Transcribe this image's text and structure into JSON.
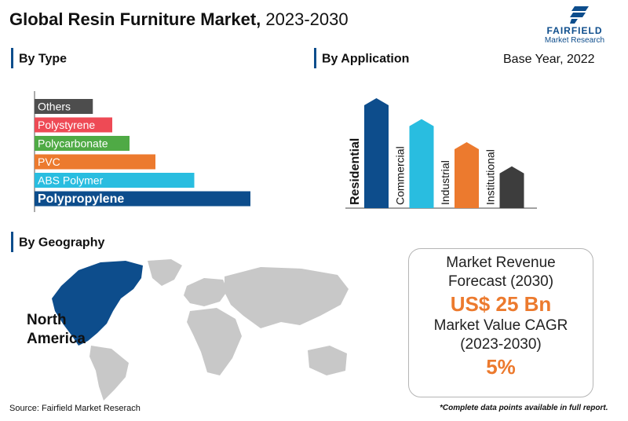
{
  "header": {
    "title_bold": "Global Resin Furniture Market,",
    "title_years": "2023-2030",
    "logo_name": "FAIRFIELD",
    "logo_sub": "Market Research",
    "base_year": "Base Year, 2022"
  },
  "sections": {
    "type": "By Type",
    "application": "By Application",
    "geography": "By Geography"
  },
  "chart_data": [
    {
      "type": "bar",
      "orientation": "horizontal",
      "title": "By Type",
      "categories": [
        "Others",
        "Polystyrene",
        "Polycarbonate",
        "PVC",
        "ABS Polymer",
        "Polypropylene"
      ],
      "values": [
        27,
        36,
        44,
        56,
        74,
        100
      ],
      "colors": [
        "#4d4d4d",
        "#ee4a55",
        "#4faa45",
        "#ec7a2e",
        "#29bde0",
        "#0d4d8c"
      ],
      "highlight": "Polypropylene"
    },
    {
      "type": "bar",
      "title": "By Application",
      "categories": [
        "Residential",
        "Commercial",
        "Industrial",
        "Institutional"
      ],
      "values": [
        100,
        81,
        60,
        38
      ],
      "colors": [
        "#0d4d8c",
        "#29bde0",
        "#ec7a2e",
        "#3d3d3d"
      ],
      "highlight": "Residential"
    }
  ],
  "geography": {
    "highlight_region": "North America",
    "highlight_color": "#0d4d8c",
    "base_color": "#c8c8c8"
  },
  "forecast": {
    "revenue_label": "Market Revenue Forecast (2030)",
    "revenue_value": "US$ 25 Bn",
    "cagr_label": "Market Value CAGR (2023-2030)",
    "cagr_value": "5%"
  },
  "footer": {
    "source": "Source: Fairfield Market Reserach",
    "note": "*Complete data points available in full report."
  }
}
